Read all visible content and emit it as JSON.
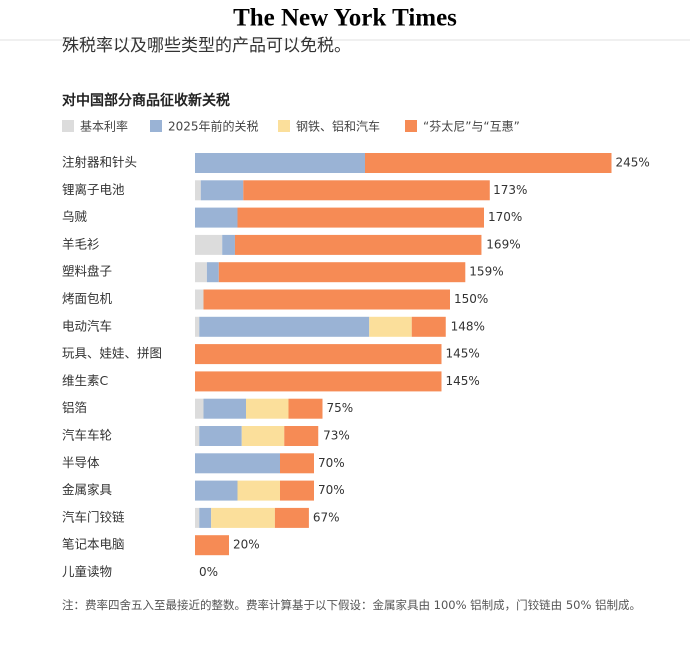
{
  "header": {
    "logo": "The New York Times",
    "intro": "殊税率以及哪些类型的产品可以免税。"
  },
  "chart_data": {
    "type": "bar",
    "orientation": "horizontal",
    "stacked": true,
    "title": "对中国部分商品征收新关税",
    "categories": [
      "注射器和针头",
      "锂离子电池",
      "乌贼",
      "羊毛衫",
      "塑料盘子",
      "烤面包机",
      "电动汽车",
      "玩具、娃娃、拼图",
      "维生素C",
      "铝箔",
      "汽车车轮",
      "半导体",
      "金属家具",
      "汽车门铰链",
      "笔记本电脑",
      "儿童读物"
    ],
    "series": [
      {
        "name": "基本利率",
        "color": "#dcdcdc",
        "values": [
          0,
          3.4,
          0,
          16,
          7,
          5,
          2.5,
          0,
          0,
          5,
          2.5,
          0,
          0,
          2.5,
          0,
          0
        ]
      },
      {
        "name": "2025年前的关税",
        "color": "#9ab3d5",
        "values": [
          100,
          25,
          25,
          7.5,
          7,
          0,
          100,
          0,
          0,
          25,
          25,
          50,
          25,
          7,
          0,
          0
        ]
      },
      {
        "name": "钢铁、铝和汽车",
        "color": "#fbdf9b",
        "values": [
          0,
          0,
          0,
          0,
          0,
          0,
          25,
          0,
          0,
          25,
          25,
          0,
          25,
          37.5,
          0,
          0
        ]
      },
      {
        "name": "“芬太尼”与“互惠”",
        "color": "#f68b55",
        "values": [
          145,
          145,
          145,
          145,
          145,
          145,
          20,
          145,
          145,
          20,
          20,
          20,
          20,
          20,
          20,
          0
        ]
      }
    ],
    "totals": [
      245,
      173,
      170,
      169,
      159,
      150,
      148,
      145,
      145,
      75,
      73,
      70,
      70,
      67,
      20,
      0
    ],
    "total_labels": [
      "245%",
      "173%",
      "170%",
      "169%",
      "159%",
      "150%",
      "148%",
      "145%",
      "145%",
      "75%",
      "73%",
      "70%",
      "70%",
      "67%",
      "20%",
      "0%"
    ],
    "note": "注：费率四舍五入至最接近的整数。费率计算基于以下假设：金属家具由 100% 铝制成，门铰链由 50% 铝制成。"
  }
}
